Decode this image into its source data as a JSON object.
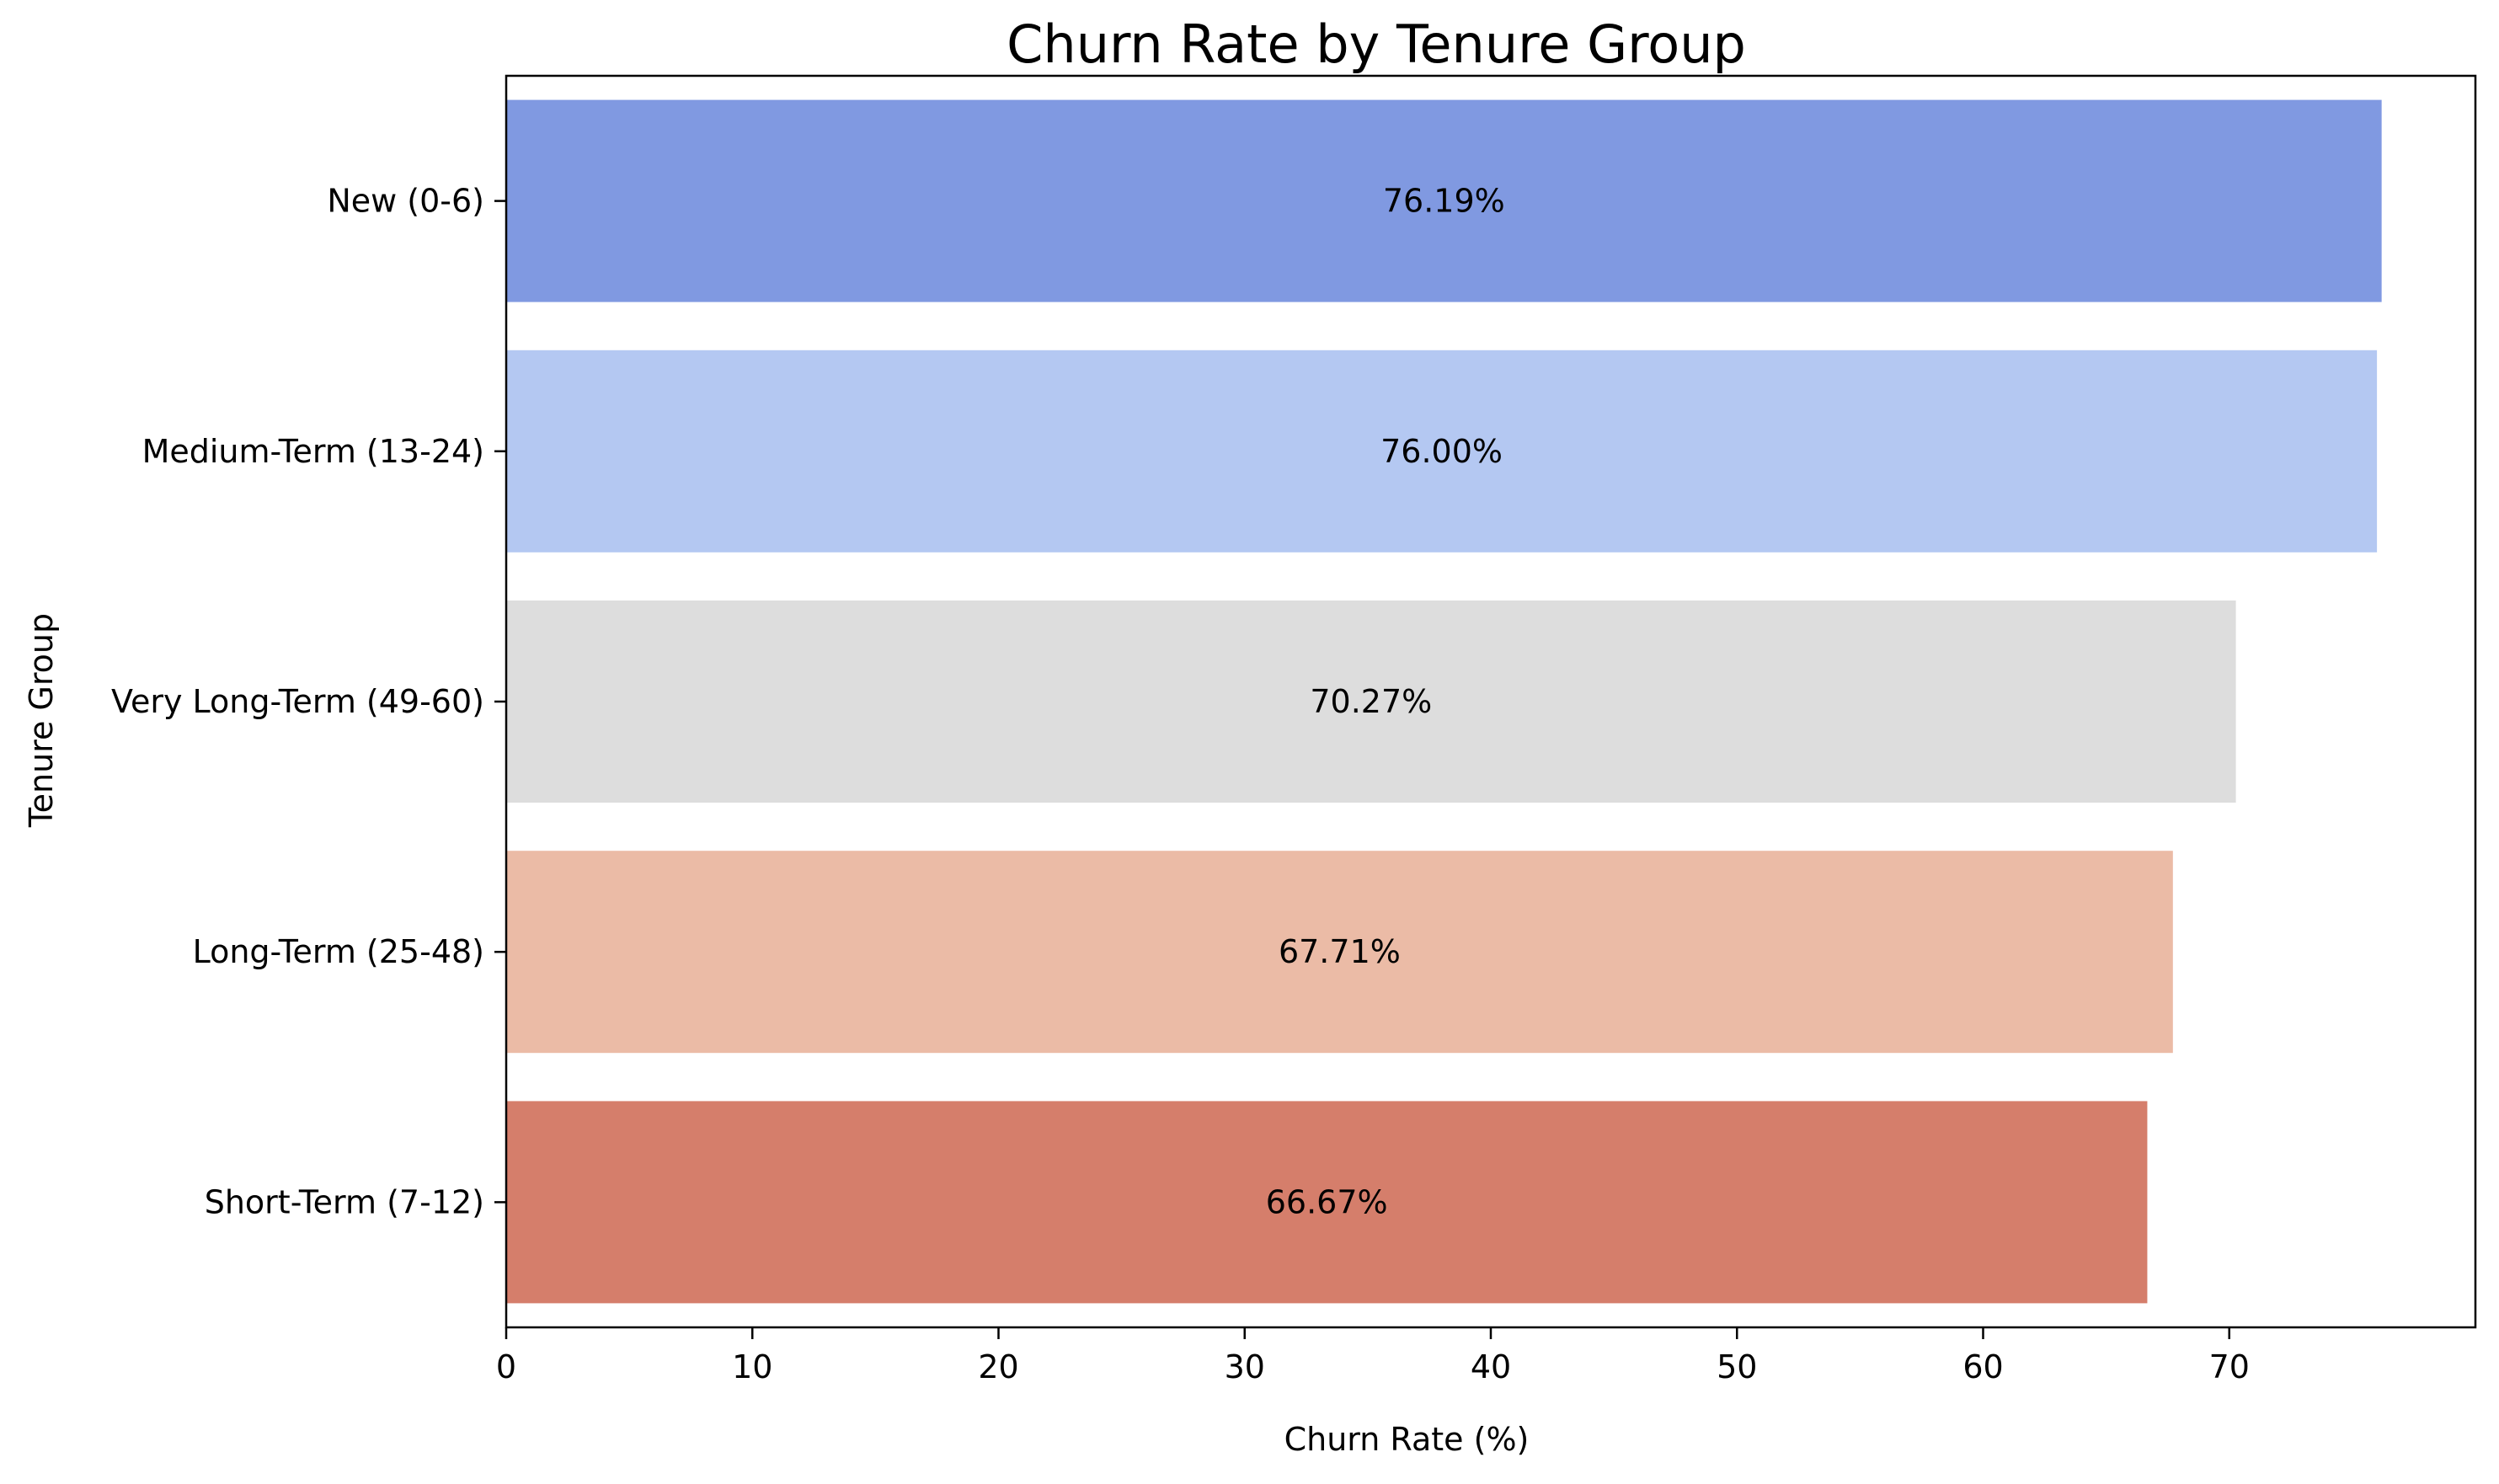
{
  "chart_data": {
    "type": "bar",
    "orientation": "horizontal",
    "title": "Churn Rate by Tenure Group",
    "xlabel": "Churn Rate (%)",
    "ylabel": "Tenure Group",
    "xlim": [
      0,
      80
    ],
    "xticks": [
      0,
      10,
      20,
      30,
      40,
      50,
      60,
      70
    ],
    "grid": false,
    "legend": "none",
    "categories": [
      "New (0-6)",
      "Medium-Term (13-24)",
      "Very Long-Term (49-60)",
      "Long-Term (25-48)",
      "Short-Term (7-12)"
    ],
    "values": [
      76.19,
      76.0,
      70.27,
      67.71,
      66.67
    ],
    "data_labels": [
      "76.19%",
      "76.00%",
      "70.27%",
      "67.71%",
      "66.67%"
    ],
    "colors": [
      "#8099e1",
      "#b4c8f2",
      "#dddddd",
      "#ebbba6",
      "#d57e6b"
    ]
  }
}
